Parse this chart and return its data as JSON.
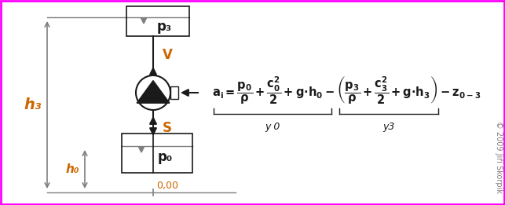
{
  "bg_color": "#ffffff",
  "magenta_border": "#ff00ff",
  "gray_color": "#7f7f7f",
  "dark_color": "#1a1a1a",
  "orange_color": "#cc6600",
  "copyright": "© 2009 Jiří Škorpik",
  "label_h3": "h₃",
  "label_h0": "h₀",
  "label_V": "V",
  "label_S": "S",
  "label_p3": "p₃",
  "label_p0": "p₀",
  "label_000": "0,00",
  "label_y0": "y 0",
  "label_y3": "y3"
}
